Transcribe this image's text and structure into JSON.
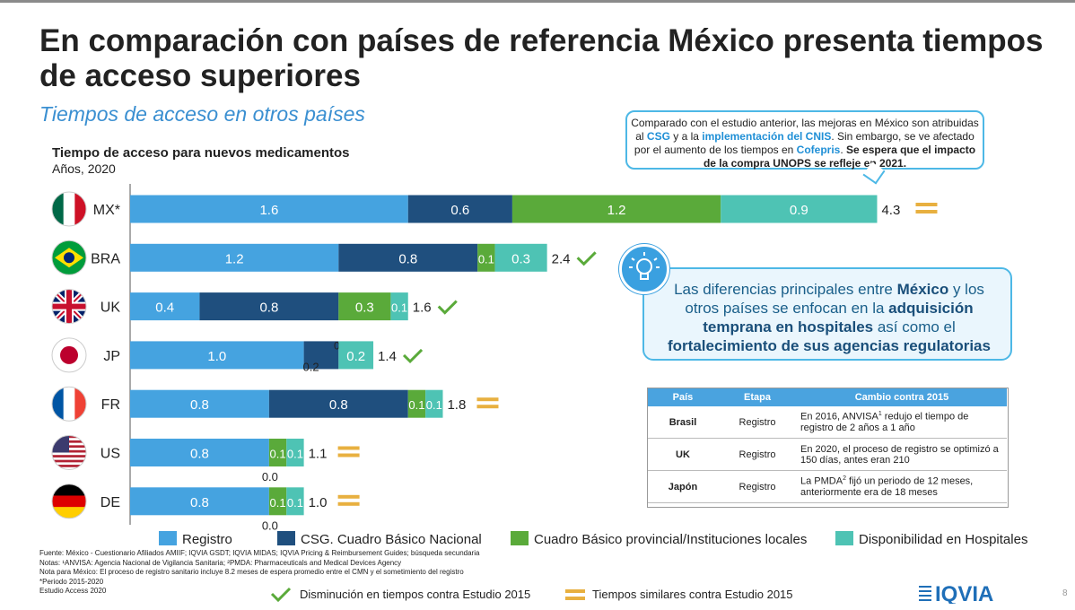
{
  "title": "En comparación con países de referencia México presenta tiempos de acceso superiores",
  "subtitle": "Tiempos de acceso en otros países",
  "chart_data": {
    "type": "bar",
    "orientation": "horizontal",
    "stacked": true,
    "title": "Tiempo de acceso para nuevos medicamentos",
    "unit_label": "Años, 2020",
    "categories": [
      "MX*",
      "BRA",
      "UK",
      "JP",
      "FR",
      "US",
      "DE"
    ],
    "series": [
      {
        "name": "Registro",
        "color": "#45a3e0",
        "values": [
          1.6,
          1.2,
          0.4,
          1.0,
          0.8,
          0.8,
          0.8
        ]
      },
      {
        "name": "CSG. Cuadro Básico Nacional",
        "color": "#1f4f7e",
        "values": [
          0.6,
          0.8,
          0.8,
          0.2,
          0.8,
          0.0,
          0.0
        ]
      },
      {
        "name": "Cuadro Básico provincial/Instituciones locales",
        "color": "#5aaa3a",
        "values": [
          1.2,
          0.1,
          0.3,
          0.0,
          0.1,
          0.1,
          0.1
        ]
      },
      {
        "name": "Disponibilidad en Hospitales",
        "color": "#4ec3b4",
        "values": [
          0.9,
          0.3,
          0.1,
          0.2,
          0.1,
          0.1,
          0.1
        ]
      }
    ],
    "totals": [
      "4.3",
      "2.4",
      "1.6",
      "1.4",
      "1.8",
      "1.1",
      "1.0"
    ],
    "change_markers": [
      "equal",
      "decrease",
      "decrease",
      "decrease",
      "equal",
      "equal",
      "equal"
    ]
  },
  "callout": {
    "t1": "Comparado con el estudio anterior, las mejoras en México son atribuidas al ",
    "b1": "CSG",
    "t2": " y a la ",
    "b2": "implementación del CNIS",
    "t3": ". Sin embargo, se ve afectado por el aumento de los tiempos en ",
    "b3": "Cofepris",
    "t4": ". ",
    "b4": "Se espera que el impacto de la compra UNOPS se refleje en 2021."
  },
  "infobox": {
    "t1": "Las diferencias principales entre ",
    "b1": "México",
    "t2": " y los otros países se enfocan en la ",
    "b2": "adquisición temprana en hospitales",
    "t3": " así como el ",
    "b3": "fortalecimiento de sus agencias regulatorias"
  },
  "table": {
    "headers": [
      "País",
      "Etapa",
      "Cambio contra 2015"
    ],
    "rows": [
      {
        "pais": "Brasil",
        "etapa": "Registro",
        "cambio_a": "En 2016, ANVISA",
        "sup": "1",
        "cambio_b": " redujo el tiempo de registro de 2 años a 1 año"
      },
      {
        "pais": "UK",
        "etapa": "Registro",
        "cambio_a": "En 2020, el proceso de registro se optimizó a 150 días, antes eran 210",
        "sup": "",
        "cambio_b": ""
      },
      {
        "pais": "Japón",
        "etapa": "Registro",
        "cambio_a": "La PMDA",
        "sup": "2",
        "cambio_b": " fijó un periodo de 12 meses, anteriormente era de 18 meses"
      }
    ]
  },
  "notes": [
    "Fuente: México - Cuestionario Afiliados AMIIF; IQVIA GSDT; IQVIA MIDAS; IQVIA Pricing & Reimbursement Guides; búsqueda secundaria",
    "Notas: ¹ANVISA: Agencia Nacional de Vigilancia Sanitaria; ²PMDA: Pharmaceuticals and Medical Devices Agency",
    "Nota para México: El proceso de registro sanitario incluye 8.2 meses de espera promedio entre el CMN y el sometimiento del registro",
    "*Periodo 2015-2020",
    "Estudio Access 2020"
  ],
  "marker_legend": {
    "decrease": "Disminución en tiempos contra Estudio 2015",
    "equal": "Tiempos similares contra Estudio 2015"
  },
  "logo_text": "IQVIA",
  "page_number": "8",
  "colors": {
    "check": "#5aaa3a",
    "equal": "#e8b040",
    "accent": "#3a8fd1"
  }
}
